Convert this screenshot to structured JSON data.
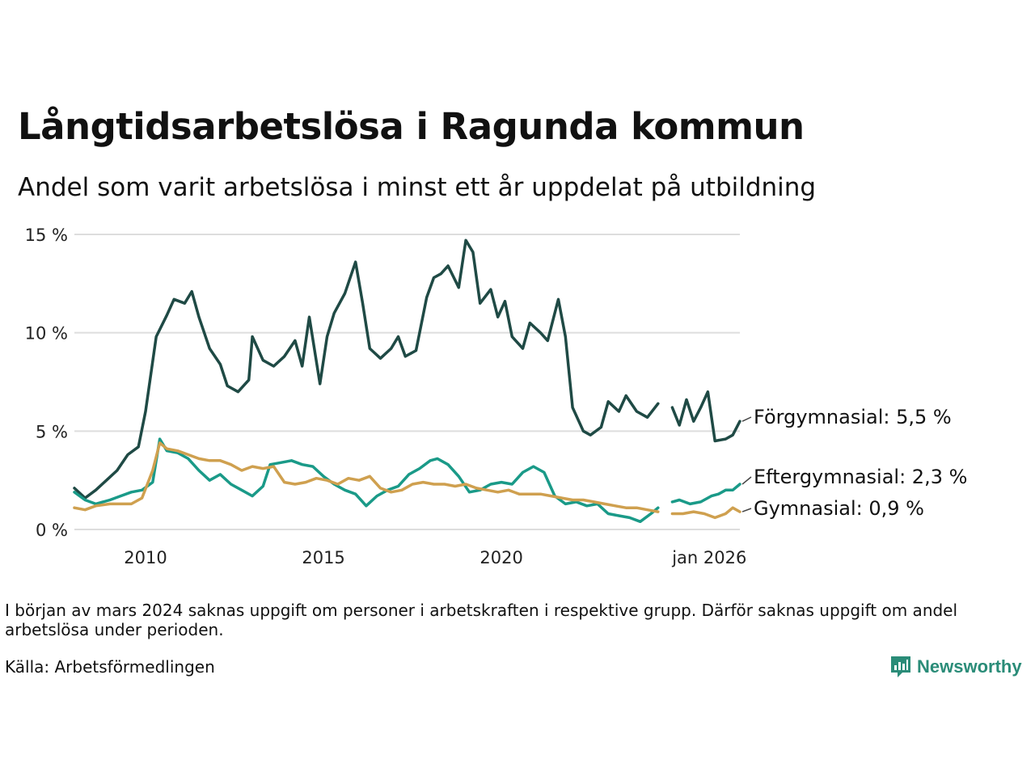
{
  "header": {
    "title": "Långtidsarbetslösa i Ragunda kommun",
    "subtitle": "Andel som varit arbetslösa i minst ett år uppdelat på utbildning"
  },
  "footer": {
    "note": "I början av mars 2024 saknas uppgift om personer i arbetskraften i respektive grupp. Därför saknas uppgift om andel arbetslösa under perioden.",
    "source": "Källa: Arbetsförmedlingen",
    "brand": "Newsworthy",
    "brand_color": "#2a8c78"
  },
  "chart_data": {
    "type": "line",
    "title": "Långtidsarbetslösa i Ragunda kommun",
    "subtitle": "Andel som varit arbetslösa i minst ett år uppdelat på utbildning",
    "xlabel": "",
    "ylabel": "",
    "ylim": [
      0,
      15
    ],
    "xlim": [
      2008.0,
      2026.0
    ],
    "y_ticks": [
      {
        "value": 0,
        "label": "0 %"
      },
      {
        "value": 5,
        "label": "5 %"
      },
      {
        "value": 10,
        "label": "10 %"
      },
      {
        "value": 15,
        "label": "15 %"
      }
    ],
    "x_ticks": [
      {
        "value": 2010.0,
        "label": "2010"
      },
      {
        "value": 2015.0,
        "label": "2015"
      },
      {
        "value": 2020.0,
        "label": "2020"
      },
      {
        "value": 2026.0,
        "label": "jan 2026"
      }
    ],
    "grid": "horizontal",
    "gap_note": "Data missing around early 2024",
    "series": [
      {
        "name": "Förgymnasial",
        "end_label": "Förgymnasial: 5,5 %",
        "color": "#1f4a45",
        "values": [
          [
            2008.0,
            2.1
          ],
          [
            2008.3,
            1.6
          ],
          [
            2008.6,
            2.0
          ],
          [
            2008.9,
            2.5
          ],
          [
            2009.2,
            3.0
          ],
          [
            2009.5,
            3.8
          ],
          [
            2009.8,
            4.2
          ],
          [
            2010.0,
            6.0
          ],
          [
            2010.3,
            9.8
          ],
          [
            2010.6,
            10.9
          ],
          [
            2010.8,
            11.7
          ],
          [
            2011.1,
            11.5
          ],
          [
            2011.3,
            12.1
          ],
          [
            2011.5,
            10.8
          ],
          [
            2011.8,
            9.2
          ],
          [
            2012.1,
            8.4
          ],
          [
            2012.3,
            7.3
          ],
          [
            2012.6,
            7.0
          ],
          [
            2012.9,
            7.6
          ],
          [
            2013.0,
            9.8
          ],
          [
            2013.3,
            8.6
          ],
          [
            2013.6,
            8.3
          ],
          [
            2013.9,
            8.8
          ],
          [
            2014.2,
            9.6
          ],
          [
            2014.4,
            8.3
          ],
          [
            2014.6,
            10.8
          ],
          [
            2014.9,
            7.4
          ],
          [
            2015.1,
            9.8
          ],
          [
            2015.3,
            11.0
          ],
          [
            2015.6,
            12.0
          ],
          [
            2015.9,
            13.6
          ],
          [
            2016.1,
            11.5
          ],
          [
            2016.3,
            9.2
          ],
          [
            2016.6,
            8.7
          ],
          [
            2016.9,
            9.2
          ],
          [
            2017.1,
            9.8
          ],
          [
            2017.3,
            8.8
          ],
          [
            2017.6,
            9.1
          ],
          [
            2017.9,
            11.8
          ],
          [
            2018.1,
            12.8
          ],
          [
            2018.3,
            13.0
          ],
          [
            2018.5,
            13.4
          ],
          [
            2018.8,
            12.3
          ],
          [
            2019.0,
            14.7
          ],
          [
            2019.2,
            14.1
          ],
          [
            2019.4,
            11.5
          ],
          [
            2019.7,
            12.2
          ],
          [
            2019.9,
            10.8
          ],
          [
            2020.1,
            11.6
          ],
          [
            2020.3,
            9.8
          ],
          [
            2020.6,
            9.2
          ],
          [
            2020.8,
            10.5
          ],
          [
            2021.1,
            10.0
          ],
          [
            2021.3,
            9.6
          ],
          [
            2021.6,
            11.7
          ],
          [
            2021.8,
            9.8
          ],
          [
            2022.0,
            6.2
          ],
          [
            2022.3,
            5.0
          ],
          [
            2022.5,
            4.8
          ],
          [
            2022.8,
            5.2
          ],
          [
            2023.0,
            6.5
          ],
          [
            2023.3,
            6.0
          ],
          [
            2023.5,
            6.8
          ],
          [
            2023.8,
            6.0
          ],
          [
            2024.1,
            5.7
          ],
          [
            2024.4,
            6.4
          ],
          null,
          [
            2024.8,
            6.2
          ],
          [
            2025.0,
            5.3
          ],
          [
            2025.2,
            6.6
          ],
          [
            2025.4,
            5.5
          ],
          [
            2025.6,
            6.2
          ],
          [
            2025.8,
            7.0
          ],
          [
            2026.0,
            4.5
          ],
          [
            2026.3,
            4.6
          ],
          [
            2026.5,
            4.8
          ],
          [
            2026.7,
            5.5
          ]
        ]
      },
      {
        "name": "Eftergymnasial",
        "end_label": "Eftergymnasial: 2,3 %",
        "color": "#1a9a88",
        "values": [
          [
            2008.0,
            1.9
          ],
          [
            2008.3,
            1.5
          ],
          [
            2008.6,
            1.3
          ],
          [
            2009.0,
            1.5
          ],
          [
            2009.3,
            1.7
          ],
          [
            2009.6,
            1.9
          ],
          [
            2009.9,
            2.0
          ],
          [
            2010.2,
            2.4
          ],
          [
            2010.4,
            4.6
          ],
          [
            2010.6,
            4.0
          ],
          [
            2010.9,
            3.9
          ],
          [
            2011.2,
            3.6
          ],
          [
            2011.5,
            3.0
          ],
          [
            2011.8,
            2.5
          ],
          [
            2012.1,
            2.8
          ],
          [
            2012.4,
            2.3
          ],
          [
            2012.7,
            2.0
          ],
          [
            2013.0,
            1.7
          ],
          [
            2013.3,
            2.2
          ],
          [
            2013.5,
            3.3
          ],
          [
            2013.8,
            3.4
          ],
          [
            2014.1,
            3.5
          ],
          [
            2014.4,
            3.3
          ],
          [
            2014.7,
            3.2
          ],
          [
            2015.0,
            2.7
          ],
          [
            2015.3,
            2.3
          ],
          [
            2015.6,
            2.0
          ],
          [
            2015.9,
            1.8
          ],
          [
            2016.2,
            1.2
          ],
          [
            2016.5,
            1.7
          ],
          [
            2016.8,
            2.0
          ],
          [
            2017.1,
            2.2
          ],
          [
            2017.4,
            2.8
          ],
          [
            2017.7,
            3.1
          ],
          [
            2018.0,
            3.5
          ],
          [
            2018.2,
            3.6
          ],
          [
            2018.5,
            3.3
          ],
          [
            2018.8,
            2.7
          ],
          [
            2019.1,
            1.9
          ],
          [
            2019.4,
            2.0
          ],
          [
            2019.7,
            2.3
          ],
          [
            2020.0,
            2.4
          ],
          [
            2020.3,
            2.3
          ],
          [
            2020.6,
            2.9
          ],
          [
            2020.9,
            3.2
          ],
          [
            2021.2,
            2.9
          ],
          [
            2021.5,
            1.7
          ],
          [
            2021.8,
            1.3
          ],
          [
            2022.1,
            1.4
          ],
          [
            2022.4,
            1.2
          ],
          [
            2022.7,
            1.3
          ],
          [
            2023.0,
            0.8
          ],
          [
            2023.3,
            0.7
          ],
          [
            2023.6,
            0.6
          ],
          [
            2023.9,
            0.4
          ],
          [
            2024.2,
            0.8
          ],
          [
            2024.4,
            1.1
          ],
          null,
          [
            2024.8,
            1.4
          ],
          [
            2025.0,
            1.5
          ],
          [
            2025.3,
            1.3
          ],
          [
            2025.6,
            1.4
          ],
          [
            2025.9,
            1.7
          ],
          [
            2026.1,
            1.8
          ],
          [
            2026.3,
            2.0
          ],
          [
            2026.5,
            2.0
          ],
          [
            2026.7,
            2.3
          ]
        ]
      },
      {
        "name": "Gymnasial",
        "end_label": "Gymnasial: 0,9 %",
        "color": "#cfa04f",
        "values": [
          [
            2008.0,
            1.1
          ],
          [
            2008.3,
            1.0
          ],
          [
            2008.6,
            1.2
          ],
          [
            2009.0,
            1.3
          ],
          [
            2009.3,
            1.3
          ],
          [
            2009.6,
            1.3
          ],
          [
            2009.9,
            1.6
          ],
          [
            2010.2,
            3.0
          ],
          [
            2010.4,
            4.4
          ],
          [
            2010.6,
            4.1
          ],
          [
            2010.9,
            4.0
          ],
          [
            2011.2,
            3.8
          ],
          [
            2011.5,
            3.6
          ],
          [
            2011.8,
            3.5
          ],
          [
            2012.1,
            3.5
          ],
          [
            2012.4,
            3.3
          ],
          [
            2012.7,
            3.0
          ],
          [
            2013.0,
            3.2
          ],
          [
            2013.3,
            3.1
          ],
          [
            2013.6,
            3.2
          ],
          [
            2013.9,
            2.4
          ],
          [
            2014.2,
            2.3
          ],
          [
            2014.5,
            2.4
          ],
          [
            2014.8,
            2.6
          ],
          [
            2015.1,
            2.5
          ],
          [
            2015.4,
            2.3
          ],
          [
            2015.7,
            2.6
          ],
          [
            2016.0,
            2.5
          ],
          [
            2016.3,
            2.7
          ],
          [
            2016.6,
            2.1
          ],
          [
            2016.9,
            1.9
          ],
          [
            2017.2,
            2.0
          ],
          [
            2017.5,
            2.3
          ],
          [
            2017.8,
            2.4
          ],
          [
            2018.1,
            2.3
          ],
          [
            2018.4,
            2.3
          ],
          [
            2018.7,
            2.2
          ],
          [
            2019.0,
            2.3
          ],
          [
            2019.3,
            2.1
          ],
          [
            2019.6,
            2.0
          ],
          [
            2019.9,
            1.9
          ],
          [
            2020.2,
            2.0
          ],
          [
            2020.5,
            1.8
          ],
          [
            2020.8,
            1.8
          ],
          [
            2021.1,
            1.8
          ],
          [
            2021.4,
            1.7
          ],
          [
            2021.7,
            1.6
          ],
          [
            2022.0,
            1.5
          ],
          [
            2022.3,
            1.5
          ],
          [
            2022.6,
            1.4
          ],
          [
            2022.9,
            1.3
          ],
          [
            2023.2,
            1.2
          ],
          [
            2023.5,
            1.1
          ],
          [
            2023.8,
            1.1
          ],
          [
            2024.1,
            1.0
          ],
          [
            2024.4,
            0.9
          ],
          null,
          [
            2024.8,
            0.8
          ],
          [
            2025.1,
            0.8
          ],
          [
            2025.4,
            0.9
          ],
          [
            2025.7,
            0.8
          ],
          [
            2026.0,
            0.6
          ],
          [
            2026.3,
            0.8
          ],
          [
            2026.5,
            1.1
          ],
          [
            2026.7,
            0.9
          ]
        ]
      }
    ]
  }
}
